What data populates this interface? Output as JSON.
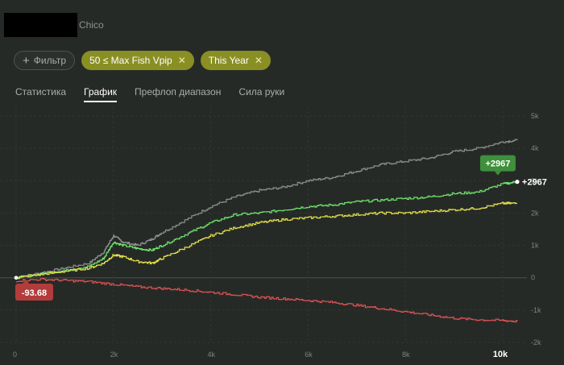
{
  "header": {
    "player_name": "Chico"
  },
  "filters": {
    "add_label": "Фильтр",
    "active": [
      {
        "label": "50 ≤ Max Fish Vpip"
      },
      {
        "label": "This Year"
      }
    ]
  },
  "tabs": [
    {
      "label": "Статистика",
      "active": false
    },
    {
      "label": "График",
      "active": true
    },
    {
      "label": "Префлоп диапазон",
      "active": false
    },
    {
      "label": "Сила руки",
      "active": false
    }
  ],
  "chart_data": {
    "type": "line",
    "x_ticks": [
      "0",
      "2k",
      "4k",
      "6k",
      "8k",
      "10k"
    ],
    "y_ticks": [
      "5k",
      "4k",
      "3k",
      "2k",
      "1k",
      "0",
      "-1k",
      "-2k"
    ],
    "xlim": [
      0,
      10500
    ],
    "ylim": [
      -2000,
      5000
    ],
    "grid": true,
    "colors": {
      "gray": "#8f8f8f",
      "green": "#6fe36c",
      "yellow": "#e5e34a",
      "red": "#e05252"
    },
    "series": [
      {
        "color": "gray",
        "x": [
          0,
          500,
          1000,
          1500,
          1800,
          2000,
          2200,
          2500,
          2800,
          3000,
          3500,
          4000,
          4500,
          5000,
          5500,
          6000,
          6500,
          7000,
          7500,
          8000,
          8500,
          9000,
          9500,
          10000,
          10300
        ],
        "y": [
          0,
          150,
          300,
          450,
          800,
          1300,
          1100,
          1000,
          1200,
          1400,
          1800,
          2200,
          2500,
          2700,
          2800,
          3000,
          3100,
          3300,
          3500,
          3600,
          3700,
          3900,
          4000,
          4200,
          4250
        ]
      },
      {
        "color": "green",
        "x": [
          0,
          500,
          1000,
          1500,
          1800,
          2000,
          2200,
          2500,
          2800,
          3000,
          3500,
          4000,
          4500,
          5000,
          5500,
          6000,
          6500,
          7000,
          7500,
          8000,
          8500,
          9000,
          9500,
          10000,
          10300
        ],
        "y": [
          0,
          120,
          220,
          350,
          600,
          1100,
          1000,
          900,
          850,
          1000,
          1350,
          1700,
          1950,
          2000,
          2100,
          2200,
          2250,
          2350,
          2400,
          2450,
          2500,
          2600,
          2650,
          2900,
          2967
        ]
      },
      {
        "color": "yellow",
        "x": [
          0,
          500,
          1000,
          1500,
          1800,
          2000,
          2200,
          2500,
          2800,
          3000,
          3500,
          4000,
          4500,
          5000,
          5500,
          6000,
          6500,
          7000,
          7500,
          8000,
          8500,
          9000,
          9500,
          10000,
          10300
        ],
        "y": [
          0,
          100,
          200,
          300,
          450,
          700,
          650,
          500,
          450,
          600,
          950,
          1300,
          1550,
          1700,
          1800,
          1850,
          1900,
          1950,
          2000,
          2000,
          2050,
          2100,
          2150,
          2300,
          2300
        ]
      },
      {
        "color": "red",
        "x": [
          0,
          500,
          1000,
          1500,
          2000,
          2500,
          3000,
          3500,
          4000,
          4500,
          5000,
          5500,
          6000,
          6500,
          7000,
          7500,
          8000,
          8500,
          9000,
          9500,
          10000,
          10300
        ],
        "y": [
          -93.68,
          -50,
          -80,
          -120,
          -200,
          -280,
          -330,
          -380,
          -450,
          -520,
          -600,
          -650,
          -700,
          -760,
          -850,
          -950,
          -1050,
          -1150,
          -1250,
          -1300,
          -1320,
          -1350
        ]
      }
    ],
    "annotations": {
      "end_badge": "+2967",
      "end_label": "+2967",
      "start_badge": "-93.68"
    }
  }
}
